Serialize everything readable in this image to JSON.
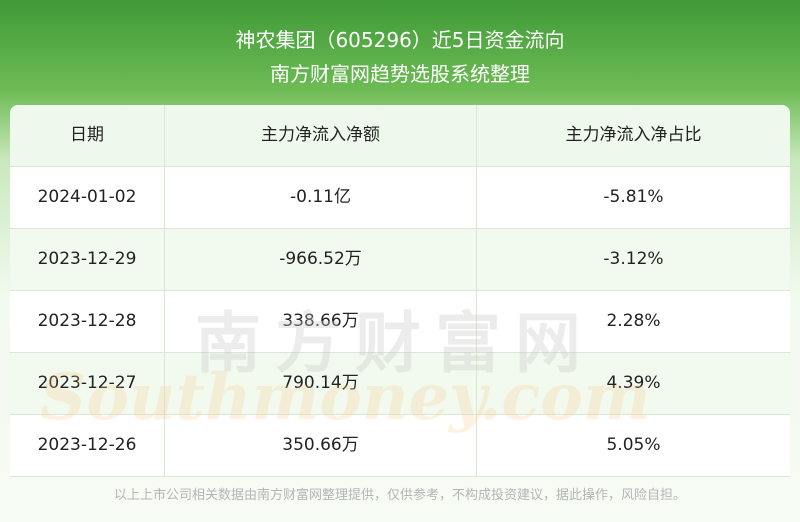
{
  "header": {
    "title": "神农集团（605296）近5日资金流向",
    "subtitle": "南方财富网趋势选股系统整理"
  },
  "table": {
    "columns": [
      "日期",
      "主力净流入净额",
      "主力净流入净占比"
    ],
    "rows": [
      [
        "2024-01-02",
        "-0.11亿",
        "-5.81%"
      ],
      [
        "2023-12-29",
        "-966.52万",
        "-3.12%"
      ],
      [
        "2023-12-28",
        "338.66万",
        "2.28%"
      ],
      [
        "2023-12-27",
        "790.14万",
        "4.39%"
      ],
      [
        "2023-12-26",
        "350.66万",
        "5.05%"
      ]
    ]
  },
  "watermark": {
    "cn": "南方财富网",
    "en": "Southmoney.com"
  },
  "footer": {
    "note": "以上上市公司相关数据由南方财富网整理提供，仅供参考，不构成投资建议，据此操作，风险自担。"
  }
}
